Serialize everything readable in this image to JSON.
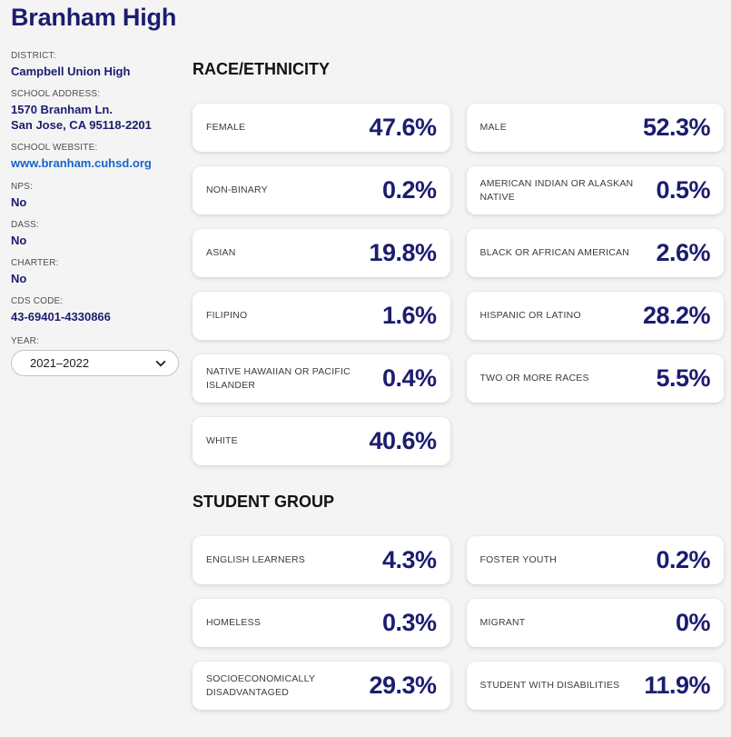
{
  "colors": {
    "navy": "#1c1c70",
    "link": "#1266cb",
    "page-bg": "#f4f4f4",
    "card-bg": "#ffffff",
    "heading": "#121212"
  },
  "header": {
    "title": "Branham High"
  },
  "sidebar": {
    "fields": [
      {
        "label": "DISTRICT:",
        "lines": [
          "Campbell Union High"
        ],
        "link": false
      },
      {
        "label": "SCHOOL ADDRESS:",
        "lines": [
          "1570 Branham Ln.",
          "San Jose, CA 95118-2201"
        ],
        "link": false
      },
      {
        "label": "SCHOOL WEBSITE:",
        "lines": [
          "www.branham.cuhsd.org"
        ],
        "link": true
      },
      {
        "label": "NPS:",
        "lines": [
          "No"
        ],
        "link": false
      },
      {
        "label": "DASS:",
        "lines": [
          "No"
        ],
        "link": false
      },
      {
        "label": "CHARTER:",
        "lines": [
          "No"
        ],
        "link": false
      },
      {
        "label": "CDS CODE:",
        "lines": [
          "43-69401-4330866"
        ],
        "link": false
      }
    ],
    "year": {
      "label": "YEAR:",
      "value": "2021–2022"
    }
  },
  "sections": [
    {
      "title": "RACE/ETHNICITY",
      "cards": [
        {
          "label": "FEMALE",
          "value": "47.6%"
        },
        {
          "label": "MALE",
          "value": "52.3%"
        },
        {
          "label": "NON-BINARY",
          "value": "0.2%"
        },
        {
          "label": "AMERICAN INDIAN OR ALASKAN NATIVE",
          "value": "0.5%"
        },
        {
          "label": "ASIAN",
          "value": "19.8%"
        },
        {
          "label": "BLACK OR AFRICAN AMERICAN",
          "value": "2.6%"
        },
        {
          "label": "FILIPINO",
          "value": "1.6%"
        },
        {
          "label": "HISPANIC OR LATINO",
          "value": "28.2%"
        },
        {
          "label": "NATIVE HAWAIIAN OR PACIFIC ISLANDER",
          "value": "0.4%"
        },
        {
          "label": "TWO OR MORE RACES",
          "value": "5.5%"
        },
        {
          "label": "WHITE",
          "value": "40.6%"
        }
      ]
    },
    {
      "title": "STUDENT GROUP",
      "cards": [
        {
          "label": "ENGLISH LEARNERS",
          "value": "4.3%"
        },
        {
          "label": "FOSTER YOUTH",
          "value": "0.2%"
        },
        {
          "label": "HOMELESS",
          "value": "0.3%"
        },
        {
          "label": "MIGRANT",
          "value": "0%"
        },
        {
          "label": "SOCIOECONOMICALLY DISADVANTAGED",
          "value": "29.3%"
        },
        {
          "label": "STUDENT WITH DISABILITIES",
          "value": "11.9%"
        }
      ]
    }
  ]
}
